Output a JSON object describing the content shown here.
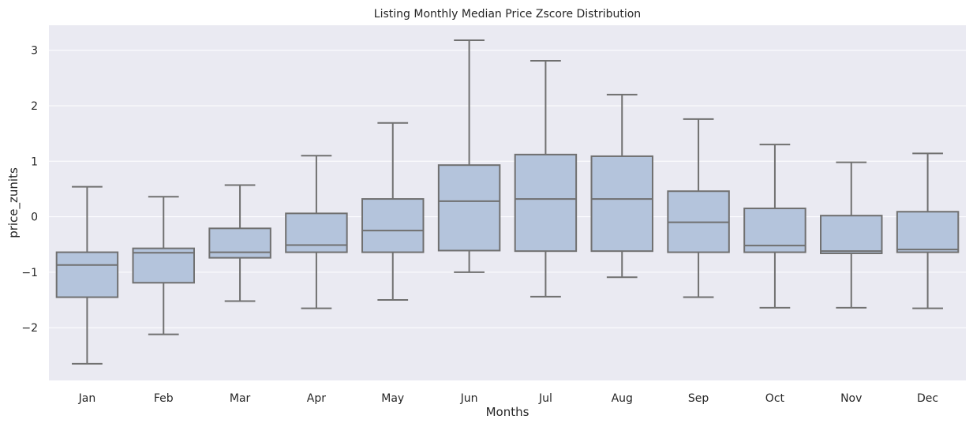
{
  "chart_data": {
    "type": "box",
    "title": "Listing Monthly Median Price Zscore Distribution",
    "xlabel": "Months",
    "ylabel": "price_zunits",
    "ylim": [
      -2.95,
      3.45
    ],
    "yticks": [
      3,
      2,
      1,
      0,
      -1,
      -2
    ],
    "ytick_labels": [
      "3",
      "2",
      "1",
      "0",
      "−1",
      "−2"
    ],
    "grid": true,
    "colors": {
      "plot_background": "#eaeaf2",
      "grid": "#ffffff",
      "box_fill": "#b4c4dc",
      "box_edge": "#707070"
    },
    "categories": [
      "Jan",
      "Feb",
      "Mar",
      "Apr",
      "May",
      "Jun",
      "Jul",
      "Aug",
      "Sep",
      "Oct",
      "Nov",
      "Dec"
    ],
    "boxes": [
      {
        "month": "Jan",
        "whisker_low": -2.65,
        "q1": -1.45,
        "median": -0.87,
        "q3": -0.64,
        "whisker_high": 0.54
      },
      {
        "month": "Feb",
        "whisker_low": -2.12,
        "q1": -1.19,
        "median": -0.65,
        "q3": -0.57,
        "whisker_high": 0.36
      },
      {
        "month": "Mar",
        "whisker_low": -1.52,
        "q1": -0.74,
        "median": -0.64,
        "q3": -0.21,
        "whisker_high": 0.57
      },
      {
        "month": "Apr",
        "whisker_low": -1.65,
        "q1": -0.64,
        "median": -0.51,
        "q3": 0.06,
        "whisker_high": 1.1
      },
      {
        "month": "May",
        "whisker_low": -1.5,
        "q1": -0.64,
        "median": -0.25,
        "q3": 0.32,
        "whisker_high": 1.69
      },
      {
        "month": "Jun",
        "whisker_low": -1.0,
        "q1": -0.61,
        "median": 0.28,
        "q3": 0.93,
        "whisker_high": 3.18
      },
      {
        "month": "Jul",
        "whisker_low": -1.44,
        "q1": -0.62,
        "median": 0.32,
        "q3": 1.12,
        "whisker_high": 2.81
      },
      {
        "month": "Aug",
        "whisker_low": -1.09,
        "q1": -0.62,
        "median": 0.32,
        "q3": 1.09,
        "whisker_high": 2.2
      },
      {
        "month": "Sep",
        "whisker_low": -1.45,
        "q1": -0.64,
        "median": -0.1,
        "q3": 0.46,
        "whisker_high": 1.76
      },
      {
        "month": "Oct",
        "whisker_low": -1.64,
        "q1": -0.64,
        "median": -0.52,
        "q3": 0.15,
        "whisker_high": 1.3
      },
      {
        "month": "Nov",
        "whisker_low": -1.64,
        "q1": -0.66,
        "median": -0.62,
        "q3": 0.02,
        "whisker_high": 0.98
      },
      {
        "month": "Dec",
        "whisker_low": -1.65,
        "q1": -0.64,
        "median": -0.59,
        "q3": 0.09,
        "whisker_high": 1.14
      }
    ]
  }
}
